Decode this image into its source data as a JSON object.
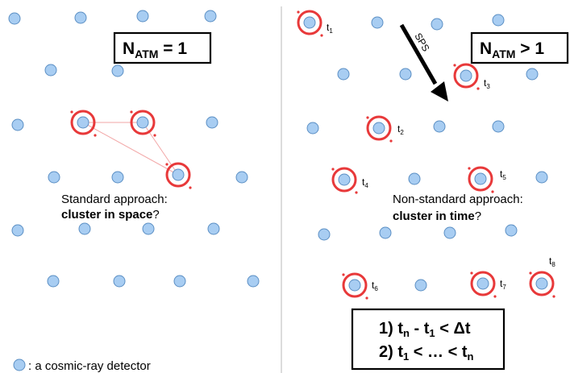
{
  "left_panel": {
    "box": {
      "base": "N",
      "subscript": "ATM",
      "relation": " = 1"
    },
    "caption_line1": "Standard approach:",
    "caption_bold": "cluster in space",
    "caption_tail": "?"
  },
  "right_panel": {
    "box": {
      "base": "N",
      "subscript": "ATM",
      "relation": " > 1"
    },
    "arrow_label": "SPS",
    "caption_line1": "Non-standard approach:",
    "caption_bold": "cluster in time",
    "caption_tail": "?",
    "time_labels": [
      {
        "base": "t",
        "sub": "1"
      },
      {
        "base": "t",
        "sub": "2"
      },
      {
        "base": "t",
        "sub": "3"
      },
      {
        "base": "t",
        "sub": "4"
      },
      {
        "base": "t",
        "sub": "5"
      },
      {
        "base": "t",
        "sub": "6"
      },
      {
        "base": "t",
        "sub": "7"
      },
      {
        "base": "t",
        "sub": "8"
      }
    ],
    "conditions": {
      "line1": {
        "prefix": "1) ",
        "a": "t",
        "a_sub": "n",
        "mid": " - ",
        "b": "t",
        "b_sub": "1",
        "tail": " < Δt"
      },
      "line2": {
        "prefix": "2) ",
        "a": "t",
        "a_sub": "1",
        "mid": " < … < ",
        "b": "t",
        "b_sub": "n",
        "tail": ""
      }
    }
  },
  "legend": {
    "text": ": a cosmic-ray detector"
  },
  "colors": {
    "detector_fill": "#a8cdf2",
    "detector_stroke": "#5b8fc4",
    "highlight": "#e8393a",
    "link": "#f2a6a6"
  }
}
